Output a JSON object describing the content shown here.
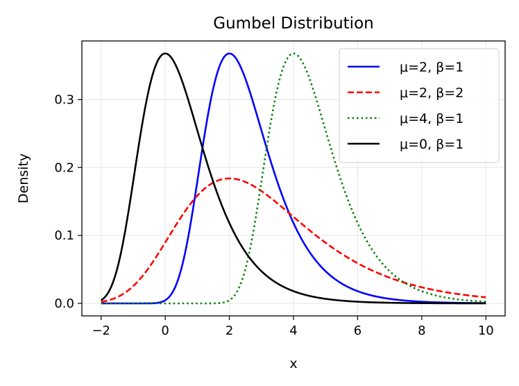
{
  "chart_data": {
    "type": "line",
    "title": "Gumbel Distribution",
    "xlabel": "x",
    "ylabel": "Density",
    "xlim": [
      -2.6,
      10.6
    ],
    "ylim": [
      -0.0184,
      0.3863
    ],
    "xticks": [
      -2,
      0,
      2,
      4,
      6,
      8,
      10
    ],
    "xtick_labels": [
      "−2",
      "0",
      "2",
      "4",
      "6",
      "8",
      "10"
    ],
    "yticks": [
      0.0,
      0.1,
      0.2,
      0.3
    ],
    "ytick_labels": [
      "0.0",
      "0.1",
      "0.2",
      "0.3"
    ],
    "grid": true,
    "legend_position": "top-right",
    "x_range": [
      -2,
      10
    ],
    "series": [
      {
        "name": "μ=2, β=1",
        "mu": 2,
        "beta": 1,
        "color": "#0000ff",
        "dash": "solid"
      },
      {
        "name": "μ=2, β=2",
        "mu": 2,
        "beta": 2,
        "color": "#ff0000",
        "dash": "dashed"
      },
      {
        "name": "μ=4, β=1",
        "mu": 4,
        "beta": 1,
        "color": "#008000",
        "dash": "dotted"
      },
      {
        "name": "μ=0, β=1",
        "mu": 0,
        "beta": 1,
        "color": "#000000",
        "dash": "solid"
      }
    ]
  }
}
